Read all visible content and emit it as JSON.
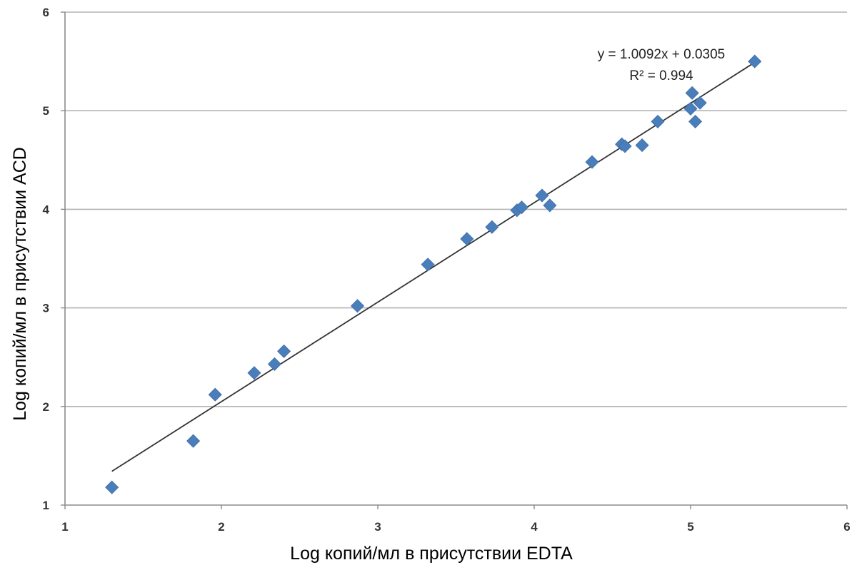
{
  "chart_data": {
    "type": "scatter",
    "xlabel": "Log копий/мл в присутствии EDTA",
    "ylabel": "Log копий/мл в присутствии ACD",
    "xlim": [
      1,
      6
    ],
    "ylim": [
      1,
      6
    ],
    "x_ticks": [
      "1",
      "2",
      "3",
      "4",
      "5",
      "6"
    ],
    "y_ticks": [
      "1",
      "2",
      "3",
      "4",
      "5",
      "6"
    ],
    "grid": "horizontal",
    "colors": {
      "points": "#4a7ebb",
      "trendline": "#333333",
      "grid": "#b3b3b3"
    },
    "points": [
      {
        "x": 1.3,
        "y": 1.18
      },
      {
        "x": 1.82,
        "y": 1.65
      },
      {
        "x": 1.96,
        "y": 2.12
      },
      {
        "x": 2.21,
        "y": 2.34
      },
      {
        "x": 2.34,
        "y": 2.43
      },
      {
        "x": 2.4,
        "y": 2.56
      },
      {
        "x": 2.87,
        "y": 3.02
      },
      {
        "x": 3.32,
        "y": 3.44
      },
      {
        "x": 3.57,
        "y": 3.7
      },
      {
        "x": 3.73,
        "y": 3.82
      },
      {
        "x": 3.89,
        "y": 3.99
      },
      {
        "x": 3.92,
        "y": 4.02
      },
      {
        "x": 4.05,
        "y": 4.14
      },
      {
        "x": 4.1,
        "y": 4.04
      },
      {
        "x": 4.37,
        "y": 4.48
      },
      {
        "x": 4.56,
        "y": 4.66
      },
      {
        "x": 4.58,
        "y": 4.64
      },
      {
        "x": 4.69,
        "y": 4.65
      },
      {
        "x": 4.79,
        "y": 4.89
      },
      {
        "x": 5.0,
        "y": 5.02
      },
      {
        "x": 5.01,
        "y": 5.18
      },
      {
        "x": 5.03,
        "y": 4.89
      },
      {
        "x": 5.06,
        "y": 5.08
      },
      {
        "x": 5.41,
        "y": 5.5
      }
    ],
    "trendline": {
      "slope": 1.0092,
      "intercept": 0.0305,
      "x_range": [
        1.3,
        5.41
      ],
      "equation": "y = 1.0092x + 0.0305",
      "r2": "R² = 0.994"
    }
  }
}
